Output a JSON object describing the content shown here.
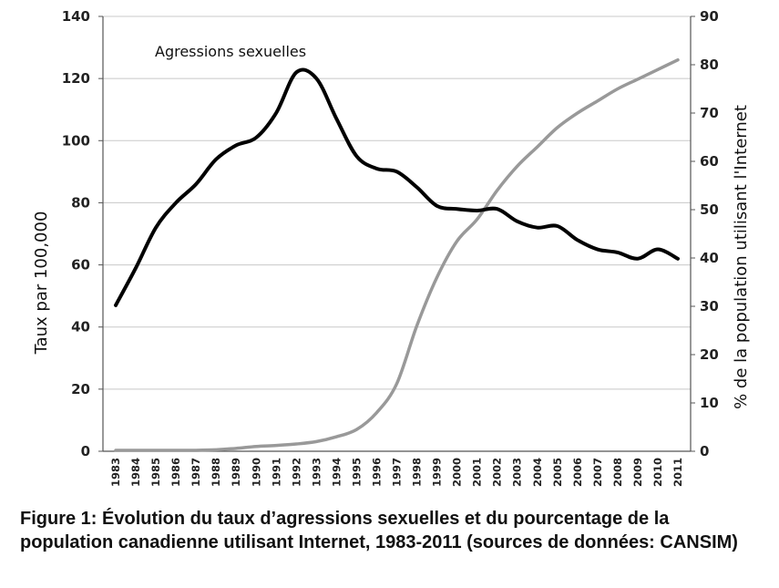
{
  "chart_data": {
    "type": "line",
    "annotation": "Agressions sexuelles",
    "y_left_label": "Taux par 100,000",
    "y_right_label": "% de la population  utilisant l'Internet",
    "y_left_range": [
      0,
      140
    ],
    "y_right_range": [
      0,
      90
    ],
    "y_left_ticks": [
      "0",
      "20",
      "40",
      "60",
      "80",
      "100",
      "120",
      "140"
    ],
    "y_right_ticks": [
      "0",
      "10",
      "20",
      "30",
      "40",
      "50",
      "60",
      "70",
      "80",
      "90"
    ],
    "grid": true,
    "x": [
      "1983",
      "1984",
      "1985",
      "1986",
      "1987",
      "1988",
      "1989",
      "1990",
      "1991",
      "1992",
      "1993",
      "1994",
      "1995",
      "1996",
      "1997",
      "1998",
      "1999",
      "2000",
      "2001",
      "2002",
      "2003",
      "2004",
      "2005",
      "2006",
      "2007",
      "2008",
      "2009",
      "2010",
      "2011"
    ],
    "series": [
      {
        "axis": "left",
        "color": "#000000",
        "values": [
          47,
          59,
          72,
          80,
          86,
          94,
          98.5,
          101,
          109,
          122,
          120,
          107,
          95,
          91,
          90,
          85,
          79,
          78,
          77.5,
          78,
          74,
          72,
          72.5,
          68,
          65,
          64,
          62,
          65,
          62
        ]
      },
      {
        "axis": "right",
        "color": "#999999",
        "values": [
          0.2,
          0.2,
          0.2,
          0.2,
          0.2,
          0.3,
          0.6,
          1,
          1.2,
          1.5,
          2,
          3,
          4.5,
          8,
          14,
          26,
          36,
          43.5,
          48,
          54,
          59,
          63,
          67,
          70,
          72.5,
          75,
          77,
          79,
          81
        ]
      }
    ]
  },
  "caption": "Figure 1: Évolution du taux d’agressions sexuelles et du pourcentage de la population canadienne utilisant Internet, 1983-2011 (sources de données: CANSIM)"
}
